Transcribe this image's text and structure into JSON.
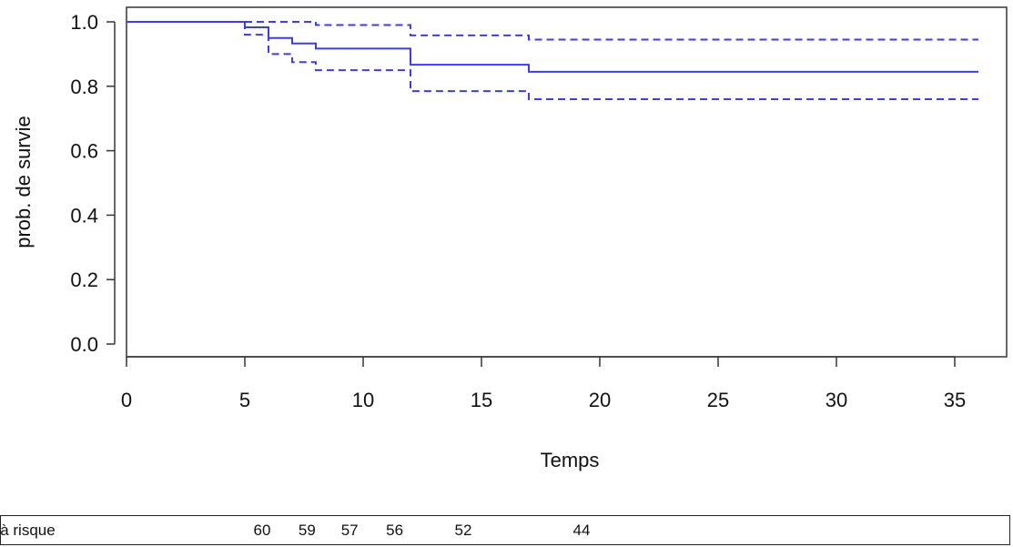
{
  "chart_data": {
    "type": "line",
    "title": "",
    "xlabel": "Temps",
    "ylabel": "prob. de survie",
    "xlim": [
      0,
      36
    ],
    "ylim": [
      0,
      1.0
    ],
    "xticks": [
      0,
      5,
      10,
      15,
      20,
      25,
      30,
      35
    ],
    "yticks": [
      "0.0",
      "0.2",
      "0.4",
      "0.6",
      "0.8",
      "1.0"
    ],
    "grid": false,
    "series": [
      {
        "style": "solid",
        "color": "#3b3bf0",
        "steps": [
          [
            0,
            1.0
          ],
          [
            5,
            0.983
          ],
          [
            6,
            0.95
          ],
          [
            7,
            0.933
          ],
          [
            8,
            0.917
          ],
          [
            12,
            0.867
          ],
          [
            17,
            0.845
          ],
          [
            36,
            0.845
          ]
        ]
      },
      {
        "style": "dashed",
        "color": "#3b3bf0",
        "steps": [
          [
            0,
            1.0
          ],
          [
            8,
            0.99
          ],
          [
            12,
            0.958
          ],
          [
            17,
            0.945
          ],
          [
            36,
            0.945
          ]
        ]
      },
      {
        "style": "dashed",
        "color": "#3b3bf0",
        "steps": [
          [
            0,
            1.0
          ],
          [
            5,
            0.96
          ],
          [
            6,
            0.9
          ],
          [
            7,
            0.875
          ],
          [
            8,
            0.85
          ],
          [
            12,
            0.785
          ],
          [
            17,
            0.76
          ],
          [
            36,
            0.76
          ]
        ]
      }
    ]
  },
  "risk_table": {
    "label": "s à risque",
    "counts": [
      {
        "time": 3.5,
        "value": "60"
      },
      {
        "time": 5.4,
        "value": "59"
      },
      {
        "time": 7.2,
        "value": "57"
      },
      {
        "time": 9.1,
        "value": "56"
      },
      {
        "time": 12.0,
        "value": "52"
      },
      {
        "time": 17.0,
        "value": "44"
      }
    ]
  }
}
